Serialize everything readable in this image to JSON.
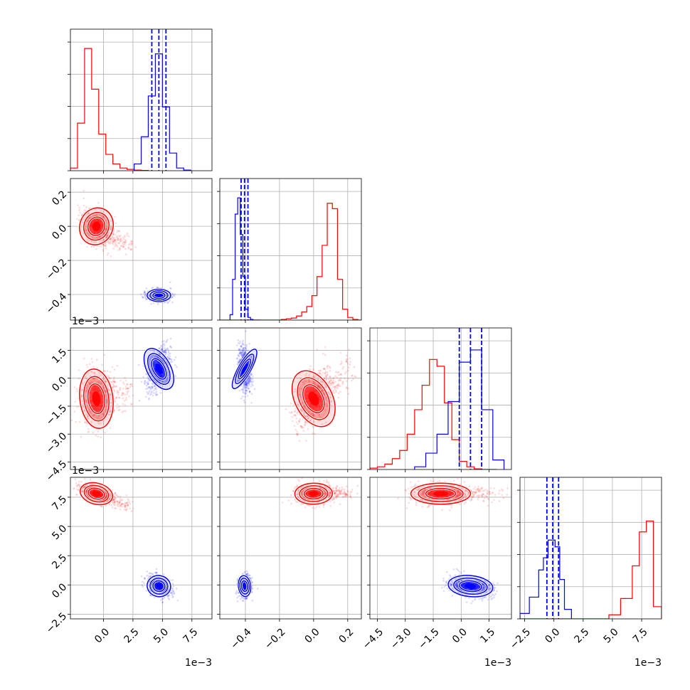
{
  "chart_data": {
    "type": "corner",
    "colors": {
      "series_a": "#ff0000",
      "series_b": "#0000ff",
      "grid": "#b0b0b0"
    },
    "params": [
      {
        "range": [
          -0.0028,
          0.0092
        ],
        "ticks": [
          0.0,
          0.0025,
          0.005,
          0.0075
        ],
        "tick_labels": [
          "0.0",
          "2.5",
          "5.0",
          "7.5"
        ],
        "offset": "1e−3"
      },
      {
        "range": [
          -0.55,
          0.28
        ],
        "ticks": [
          -0.4,
          -0.2,
          0.0,
          0.2
        ],
        "tick_labels": [
          "−0.4",
          "−0.2",
          "0.0",
          "0.2"
        ],
        "offset": ""
      },
      {
        "range": [
          -0.0049,
          0.0027
        ],
        "ticks": [
          -0.0045,
          -0.003,
          -0.0015,
          0.0,
          0.0015
        ],
        "tick_labels": [
          "−4.5",
          "−3.0",
          "−1.5",
          "0.0",
          "1.5"
        ],
        "offset": "1e−3"
      },
      {
        "range": [
          -0.0029,
          0.0092
        ],
        "ticks": [
          -0.0025,
          0.0,
          0.0025,
          0.005,
          0.0075
        ],
        "tick_labels": [
          "−2.5",
          "0.0",
          "2.5",
          "5.0",
          "7.5"
        ],
        "offset": "1e−3"
      }
    ],
    "series": [
      {
        "color": "#ff0000",
        "mean": [
          -0.0006,
          0.0,
          -0.0011,
          0.0078
        ],
        "sd": [
          0.0007,
          0.055,
          0.0008,
          0.00045
        ],
        "histograms": [
          {
            "edges": [
              -0.0028,
              -0.0022,
              -0.0016,
              -0.001,
              -0.0004,
              0.0002,
              0.0008,
              0.0014,
              0.002,
              0.0026,
              0.0032,
              0.0038
            ],
            "counts": [
              0.02,
              0.35,
              0.9,
              0.6,
              0.27,
              0.12,
              0.05,
              0.02,
              0.01,
              0.005,
              0.002
            ]
          },
          {
            "edges": [
              -0.55,
              -0.52,
              -0.49,
              -0.46,
              -0.43,
              -0.4,
              -0.37,
              -0.34,
              -0.31,
              -0.28,
              -0.25,
              -0.22,
              -0.19,
              -0.16,
              -0.13,
              -0.1,
              -0.07,
              -0.04,
              -0.01,
              0.02,
              0.05,
              0.08,
              0.11,
              0.14,
              0.17,
              0.2,
              0.23,
              0.26,
              0.28
            ],
            "counts": [
              0,
              0,
              0,
              0,
              0,
              0,
              0,
              0,
              0,
              0,
              0,
              0,
              0.005,
              0.01,
              0.015,
              0.03,
              0.06,
              0.1,
              0.18,
              0.32,
              0.55,
              0.86,
              0.82,
              0.3,
              0.08,
              0.02,
              0.005,
              0
            ]
          },
          {
            "edges": [
              -0.0049,
              -0.0045,
              -0.0041,
              -0.0037,
              -0.0033,
              -0.0029,
              -0.0025,
              -0.0021,
              -0.0017,
              -0.0013,
              -0.0009,
              -0.0005,
              -0.0001,
              0.0003,
              0.0007,
              0.0011,
              0.0015,
              0.0019
            ],
            "counts": [
              0.01,
              0.02,
              0.04,
              0.08,
              0.14,
              0.26,
              0.44,
              0.62,
              0.81,
              0.76,
              0.49,
              0.22,
              0.06,
              0.02,
              0.005,
              0,
              0
            ]
          },
          {
            "edges": [
              -0.0029,
              0.0047,
              0.0057,
              0.0067,
              0.0073,
              0.0079,
              0.0085,
              0.0092
            ],
            "counts": [
              0,
              0.03,
              0.15,
              0.39,
              0.64,
              0.72,
              0.09
            ]
          }
        ]
      },
      {
        "color": "#0000ff",
        "mean": [
          0.0047,
          -0.405,
          0.0005,
          -0.0001
        ],
        "sd": [
          0.0005,
          0.018,
          0.0006,
          0.00045
        ],
        "histograms": [
          {
            "edges": [
              0.0026,
              0.0032,
              0.0038,
              0.0044,
              0.005,
              0.0056,
              0.0062,
              0.0068,
              0.0074
            ],
            "counts": [
              0.05,
              0.25,
              0.55,
              0.86,
              0.47,
              0.13,
              0.02,
              0.005
            ]
          },
          {
            "edges": [
              -0.49,
              -0.475,
              -0.46,
              -0.445,
              -0.43,
              -0.415,
              -0.4,
              -0.385,
              -0.37,
              -0.355,
              -0.34,
              -0.325,
              -0.31
            ],
            "counts": [
              0.04,
              0.3,
              0.78,
              0.9,
              0.63,
              0.32,
              0.08,
              0.02,
              0.005,
              0,
              0,
              0
            ]
          },
          {
            "edges": [
              -0.0025,
              -0.0019,
              -0.0013,
              -0.0007,
              -0.0001,
              0.0005,
              0.0011,
              0.0017,
              0.0023
            ],
            "counts": [
              0.02,
              0.12,
              0.26,
              0.5,
              0.79,
              0.88,
              0.44,
              0.07
            ]
          },
          {
            "edges": [
              -0.0029,
              -0.0021,
              -0.0013,
              -0.0009,
              -0.0005,
              0.0001,
              0.0005,
              0.0009,
              0.0015
            ],
            "counts": [
              0.04,
              0.16,
              0.36,
              0.45,
              0.58,
              0.53,
              0.29,
              0.07
            ]
          }
        ],
        "quantiles": [
          [
            0.0041,
            0.0047,
            0.0053
          ],
          [
            -0.425,
            -0.405,
            -0.385
          ],
          [
            -0.0001,
            0.0005,
            0.0011
          ],
          [
            -0.0006,
            -0.0001,
            0.0004
          ]
        ]
      }
    ],
    "grid": true
  }
}
